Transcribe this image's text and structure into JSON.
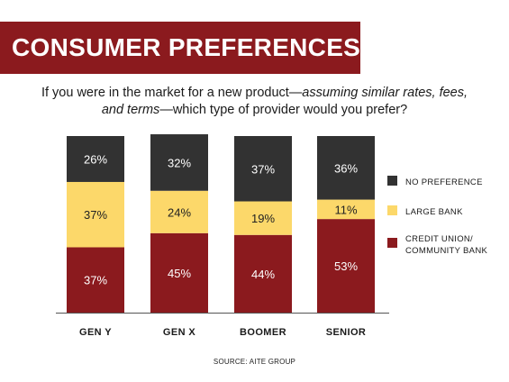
{
  "header": {
    "title": "CONSUMER PREFERENCES"
  },
  "question": {
    "part1": "If you were in the market for a new product—",
    "italic_line1": "assuming  similar rates, fees,",
    "italic_line2": "and terms",
    "part2": "—which type of provider would you prefer?"
  },
  "chart_data": {
    "type": "bar",
    "stacked": true,
    "categories": [
      "GEN Y",
      "GEN X",
      "BOOMER",
      "SENIOR"
    ],
    "series": [
      {
        "name": "CREDIT UNION/ COMMUNITY BANK",
        "legend_lines": [
          "CREDIT UNION/",
          "COMMUNITY BANK"
        ],
        "color": "#8b1a1e",
        "label_color": "#ffffff",
        "values": [
          37,
          45,
          44,
          53
        ],
        "labels": [
          "37%",
          "45%",
          "44%",
          "53%"
        ]
      },
      {
        "name": "LARGE BANK",
        "legend_lines": [
          "LARGE BANK"
        ],
        "color": "#fcd86a",
        "label_color": "#222222",
        "values": [
          37,
          24,
          19,
          11
        ],
        "labels": [
          "37%",
          "24%",
          "19%",
          "11%"
        ]
      },
      {
        "name": "NO PREFERENCE",
        "legend_lines": [
          "NO PREFERENCE"
        ],
        "color": "#323232",
        "label_color": "#ffffff",
        "values": [
          26,
          32,
          37,
          36
        ],
        "labels": [
          "26%",
          "32%",
          "37%",
          "36%"
        ]
      }
    ],
    "ylim": [
      0,
      100
    ],
    "legend_position": "right",
    "grid": false
  },
  "footer": {
    "source": "SOURCE: AITE GROUP"
  }
}
